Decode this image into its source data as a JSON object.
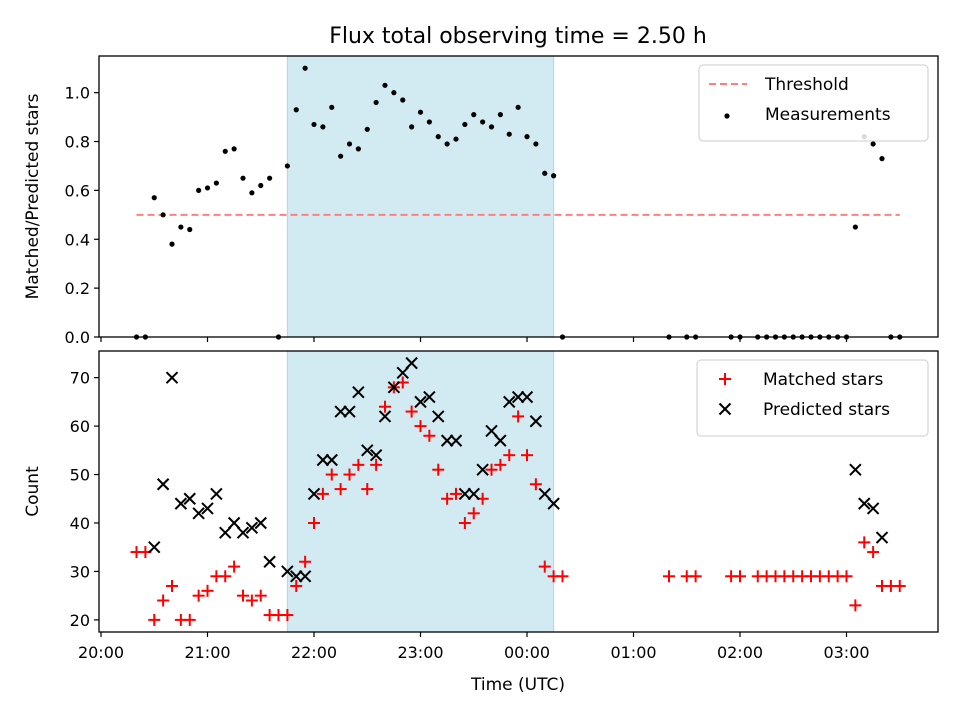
{
  "title": "Flux total observing time = 2.50 h",
  "xlabel": "Time (UTC)",
  "x_tick_labels": [
    "20:00",
    "21:00",
    "22:00",
    "23:00",
    "00:00",
    "01:00",
    "02:00",
    "03:00"
  ],
  "highlight_span": {
    "start": "21:45",
    "end": "00:15",
    "color": "#add8e6"
  },
  "chart_data": [
    {
      "type": "scatter",
      "ylabel": "Matched/Predicted stars",
      "ylim": [
        0,
        1.15
      ],
      "y_tick_labels": [
        "0.0",
        "0.2",
        "0.4",
        "0.6",
        "0.8",
        "1.0"
      ],
      "legend_position": "top-right",
      "threshold": {
        "name": "Threshold",
        "value": 0.5,
        "x_range": [
          "20:20",
          "03:30"
        ],
        "color": "#ff7f7f",
        "style": "dashed"
      },
      "series": [
        {
          "name": "Measurements",
          "color": "#000000",
          "points": [
            [
              "20:20",
              0.0
            ],
            [
              "20:25",
              0.0
            ],
            [
              "20:30",
              0.57
            ],
            [
              "20:35",
              0.5
            ],
            [
              "20:40",
              0.38
            ],
            [
              "20:45",
              0.45
            ],
            [
              "20:50",
              0.44
            ],
            [
              "20:55",
              0.6
            ],
            [
              "21:00",
              0.61
            ],
            [
              "21:05",
              0.63
            ],
            [
              "21:10",
              0.76
            ],
            [
              "21:15",
              0.77
            ],
            [
              "21:20",
              0.65
            ],
            [
              "21:25",
              0.59
            ],
            [
              "21:30",
              0.62
            ],
            [
              "21:35",
              0.65
            ],
            [
              "21:40",
              0.0
            ],
            [
              "21:45",
              0.7
            ],
            [
              "21:50",
              0.93
            ],
            [
              "21:55",
              1.1
            ],
            [
              "22:00",
              0.87
            ],
            [
              "22:05",
              0.86
            ],
            [
              "22:10",
              0.94
            ],
            [
              "22:15",
              0.74
            ],
            [
              "22:20",
              0.79
            ],
            [
              "22:25",
              0.77
            ],
            [
              "22:30",
              0.85
            ],
            [
              "22:35",
              0.96
            ],
            [
              "22:40",
              1.03
            ],
            [
              "22:45",
              1.0
            ],
            [
              "22:50",
              0.97
            ],
            [
              "22:55",
              0.86
            ],
            [
              "23:00",
              0.92
            ],
            [
              "23:05",
              0.88
            ],
            [
              "23:10",
              0.82
            ],
            [
              "23:15",
              0.79
            ],
            [
              "23:20",
              0.81
            ],
            [
              "23:25",
              0.87
            ],
            [
              "23:30",
              0.91
            ],
            [
              "23:35",
              0.88
            ],
            [
              "23:40",
              0.86
            ],
            [
              "23:45",
              0.91
            ],
            [
              "23:50",
              0.83
            ],
            [
              "23:55",
              0.94
            ],
            [
              "00:00",
              0.82
            ],
            [
              "00:05",
              0.79
            ],
            [
              "00:10",
              0.67
            ],
            [
              "00:15",
              0.66
            ],
            [
              "00:20",
              0.0
            ],
            [
              "01:20",
              0.0
            ],
            [
              "01:30",
              0.0
            ],
            [
              "01:35",
              0.0
            ],
            [
              "01:55",
              0.0
            ],
            [
              "02:00",
              0.0
            ],
            [
              "02:10",
              0.0
            ],
            [
              "02:15",
              0.0
            ],
            [
              "02:20",
              0.0
            ],
            [
              "02:25",
              0.0
            ],
            [
              "02:30",
              0.0
            ],
            [
              "02:35",
              0.0
            ],
            [
              "02:40",
              0.0
            ],
            [
              "02:45",
              0.0
            ],
            [
              "02:50",
              0.0
            ],
            [
              "02:55",
              0.0
            ],
            [
              "03:00",
              0.0
            ],
            [
              "03:05",
              0.45
            ],
            [
              "03:10",
              0.82
            ],
            [
              "03:15",
              0.79
            ],
            [
              "03:20",
              0.73
            ],
            [
              "03:25",
              0.0
            ],
            [
              "03:30",
              0.0
            ]
          ]
        }
      ]
    },
    {
      "type": "scatter",
      "ylabel": "Count",
      "ylim": [
        17.5,
        75.5
      ],
      "y_tick_labels": [
        "20",
        "30",
        "40",
        "50",
        "60",
        "70"
      ],
      "legend_position": "top-right",
      "series": [
        {
          "name": "Matched stars",
          "color": "#ff0000",
          "marker": "+",
          "points": [
            [
              "20:20",
              34
            ],
            [
              "20:25",
              34
            ],
            [
              "20:30",
              20
            ],
            [
              "20:35",
              24
            ],
            [
              "20:40",
              27
            ],
            [
              "20:45",
              20
            ],
            [
              "20:50",
              20
            ],
            [
              "20:55",
              25
            ],
            [
              "21:00",
              26
            ],
            [
              "21:05",
              29
            ],
            [
              "21:10",
              29
            ],
            [
              "21:15",
              31
            ],
            [
              "21:20",
              25
            ],
            [
              "21:25",
              24
            ],
            [
              "21:30",
              25
            ],
            [
              "21:35",
              21
            ],
            [
              "21:40",
              21
            ],
            [
              "21:45",
              21
            ],
            [
              "21:50",
              27
            ],
            [
              "21:55",
              32
            ],
            [
              "22:00",
              40
            ],
            [
              "22:05",
              46
            ],
            [
              "22:10",
              50
            ],
            [
              "22:15",
              47
            ],
            [
              "22:20",
              50
            ],
            [
              "22:25",
              52
            ],
            [
              "22:30",
              47
            ],
            [
              "22:35",
              52
            ],
            [
              "22:40",
              64
            ],
            [
              "22:45",
              68
            ],
            [
              "22:50",
              69
            ],
            [
              "22:55",
              63
            ],
            [
              "23:00",
              60
            ],
            [
              "23:05",
              58
            ],
            [
              "23:10",
              51
            ],
            [
              "23:15",
              45
            ],
            [
              "23:20",
              46
            ],
            [
              "23:25",
              40
            ],
            [
              "23:30",
              42
            ],
            [
              "23:35",
              45
            ],
            [
              "23:40",
              51
            ],
            [
              "23:45",
              52
            ],
            [
              "23:50",
              54
            ],
            [
              "23:55",
              62
            ],
            [
              "00:00",
              54
            ],
            [
              "00:05",
              48
            ],
            [
              "00:10",
              31
            ],
            [
              "00:15",
              29
            ],
            [
              "00:20",
              29
            ],
            [
              "01:20",
              29
            ],
            [
              "01:30",
              29
            ],
            [
              "01:35",
              29
            ],
            [
              "01:55",
              29
            ],
            [
              "02:00",
              29
            ],
            [
              "02:10",
              29
            ],
            [
              "02:15",
              29
            ],
            [
              "02:20",
              29
            ],
            [
              "02:25",
              29
            ],
            [
              "02:30",
              29
            ],
            [
              "02:35",
              29
            ],
            [
              "02:40",
              29
            ],
            [
              "02:45",
              29
            ],
            [
              "02:50",
              29
            ],
            [
              "02:55",
              29
            ],
            [
              "03:00",
              29
            ],
            [
              "03:05",
              23
            ],
            [
              "03:10",
              36
            ],
            [
              "03:15",
              34
            ],
            [
              "03:20",
              27
            ],
            [
              "03:25",
              27
            ],
            [
              "03:30",
              27
            ]
          ]
        },
        {
          "name": "Predicted stars",
          "color": "#000000",
          "marker": "x",
          "points": [
            [
              "20:30",
              35
            ],
            [
              "20:35",
              48
            ],
            [
              "20:40",
              70
            ],
            [
              "20:45",
              44
            ],
            [
              "20:50",
              45
            ],
            [
              "20:55",
              42
            ],
            [
              "21:00",
              43
            ],
            [
              "21:05",
              46
            ],
            [
              "21:10",
              38
            ],
            [
              "21:15",
              40
            ],
            [
              "21:20",
              38
            ],
            [
              "21:25",
              39
            ],
            [
              "21:30",
              40
            ],
            [
              "21:35",
              32
            ],
            [
              "21:45",
              30
            ],
            [
              "21:50",
              29
            ],
            [
              "21:55",
              29
            ],
            [
              "22:00",
              46
            ],
            [
              "22:05",
              53
            ],
            [
              "22:10",
              53
            ],
            [
              "22:15",
              63
            ],
            [
              "22:20",
              63
            ],
            [
              "22:25",
              67
            ],
            [
              "22:30",
              55
            ],
            [
              "22:35",
              54
            ],
            [
              "22:40",
              62
            ],
            [
              "22:45",
              68
            ],
            [
              "22:50",
              71
            ],
            [
              "22:55",
              73
            ],
            [
              "23:00",
              65
            ],
            [
              "23:05",
              66
            ],
            [
              "23:10",
              62
            ],
            [
              "23:15",
              57
            ],
            [
              "23:20",
              57
            ],
            [
              "23:25",
              46
            ],
            [
              "23:30",
              46
            ],
            [
              "23:35",
              51
            ],
            [
              "23:40",
              59
            ],
            [
              "23:45",
              57
            ],
            [
              "23:50",
              65
            ],
            [
              "23:55",
              66
            ],
            [
              "00:00",
              66
            ],
            [
              "00:05",
              61
            ],
            [
              "00:10",
              46
            ],
            [
              "00:15",
              44
            ],
            [
              "03:05",
              51
            ],
            [
              "03:10",
              44
            ],
            [
              "03:15",
              43
            ],
            [
              "03:20",
              37
            ]
          ]
        }
      ]
    }
  ]
}
